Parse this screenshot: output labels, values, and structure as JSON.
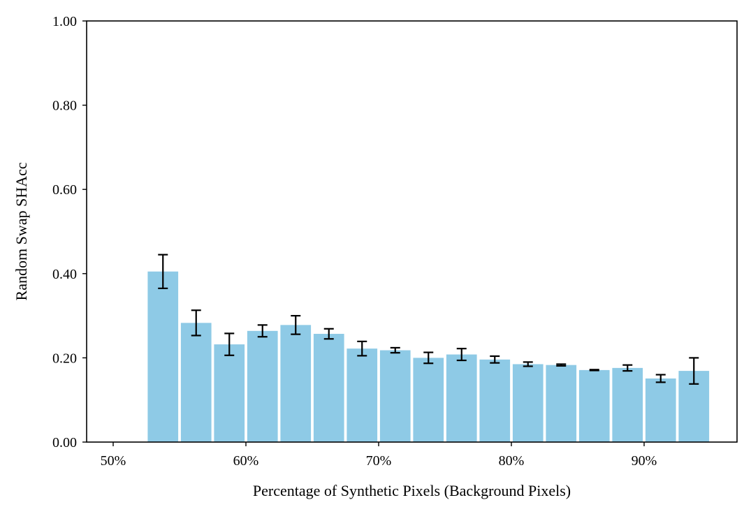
{
  "chart_data": {
    "type": "bar",
    "xlabel": "Percentage of Synthetic Pixels (Background Pixels)",
    "ylabel": "Random Swap SHAcc",
    "xlim": [
      48,
      97
    ],
    "ylim": [
      0,
      1
    ],
    "x_ticks": [
      {
        "value": 50,
        "label": "50%"
      },
      {
        "value": 60,
        "label": "60%"
      },
      {
        "value": 70,
        "label": "70%"
      },
      {
        "value": 80,
        "label": "80%"
      },
      {
        "value": 90,
        "label": "90%"
      }
    ],
    "y_ticks": [
      {
        "value": 0.0,
        "label": "0.00"
      },
      {
        "value": 0.2,
        "label": "0.20"
      },
      {
        "value": 0.4,
        "label": "0.40"
      },
      {
        "value": 0.6,
        "label": "0.60"
      },
      {
        "value": 0.8,
        "label": "0.80"
      },
      {
        "value": 1.0,
        "label": "1.00"
      }
    ],
    "bar_width": 2.3,
    "bar_color": "#8ecae6",
    "error_color": "#000000",
    "grid": false,
    "bars": [
      {
        "x": 53.75,
        "value": 0.405,
        "err": 0.04
      },
      {
        "x": 56.25,
        "value": 0.283,
        "err": 0.03
      },
      {
        "x": 58.75,
        "value": 0.232,
        "err": 0.026
      },
      {
        "x": 61.25,
        "value": 0.264,
        "err": 0.014
      },
      {
        "x": 63.75,
        "value": 0.278,
        "err": 0.022
      },
      {
        "x": 66.25,
        "value": 0.257,
        "err": 0.012
      },
      {
        "x": 68.75,
        "value": 0.222,
        "err": 0.017
      },
      {
        "x": 71.25,
        "value": 0.218,
        "err": 0.006
      },
      {
        "x": 73.75,
        "value": 0.2,
        "err": 0.013
      },
      {
        "x": 76.25,
        "value": 0.208,
        "err": 0.014
      },
      {
        "x": 78.75,
        "value": 0.196,
        "err": 0.008
      },
      {
        "x": 81.25,
        "value": 0.185,
        "err": 0.005
      },
      {
        "x": 83.75,
        "value": 0.183,
        "err": 0.002
      },
      {
        "x": 86.25,
        "value": 0.171,
        "err": 0.001
      },
      {
        "x": 88.75,
        "value": 0.176,
        "err": 0.007
      },
      {
        "x": 91.25,
        "value": 0.151,
        "err": 0.009
      },
      {
        "x": 93.75,
        "value": 0.169,
        "err": 0.031
      }
    ]
  }
}
